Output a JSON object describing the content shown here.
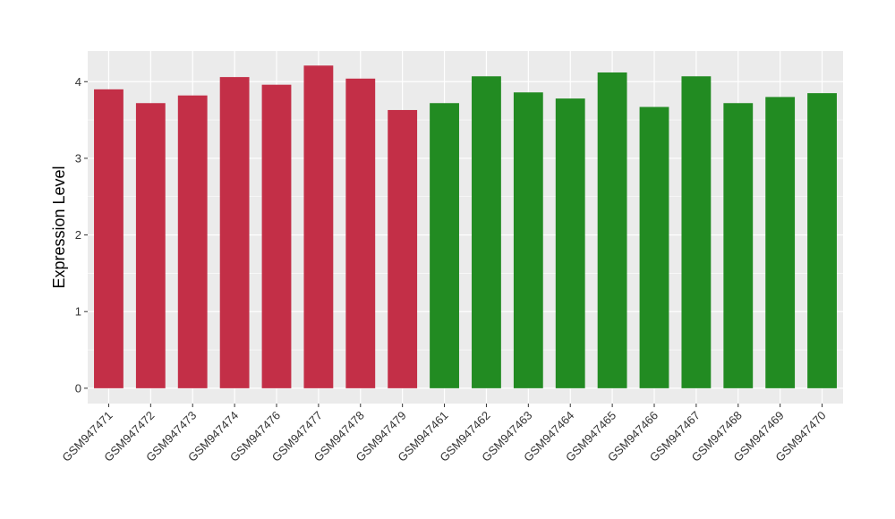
{
  "chart_data": {
    "type": "bar",
    "title": "",
    "xlabel": "",
    "ylabel": "Expression Level",
    "ylim": [
      -0.2,
      4.4
    ],
    "yticks": [
      0,
      1,
      2,
      3,
      4
    ],
    "grid": true,
    "legend": "none",
    "categories": [
      "GSM947471",
      "GSM947472",
      "GSM947473",
      "GSM947474",
      "GSM947476",
      "GSM947477",
      "GSM947478",
      "GSM947479",
      "GSM947461",
      "GSM947462",
      "GSM947463",
      "GSM947464",
      "GSM947465",
      "GSM947466",
      "GSM947467",
      "GSM947468",
      "GSM947469",
      "GSM947470"
    ],
    "values": [
      3.9,
      3.72,
      3.82,
      4.06,
      3.96,
      4.21,
      4.04,
      3.63,
      3.72,
      4.07,
      3.86,
      3.78,
      4.12,
      3.67,
      4.07,
      3.72,
      3.8,
      3.85
    ],
    "colors": [
      "#C32F47",
      "#C32F47",
      "#C32F47",
      "#C32F47",
      "#C32F47",
      "#C32F47",
      "#C32F47",
      "#C32F47",
      "#228B22",
      "#228B22",
      "#228B22",
      "#228B22",
      "#228B22",
      "#228B22",
      "#228B22",
      "#228B22",
      "#228B22",
      "#228B22"
    ],
    "panel_background": "#EBEBEB",
    "grid_color": "#FFFFFF"
  }
}
